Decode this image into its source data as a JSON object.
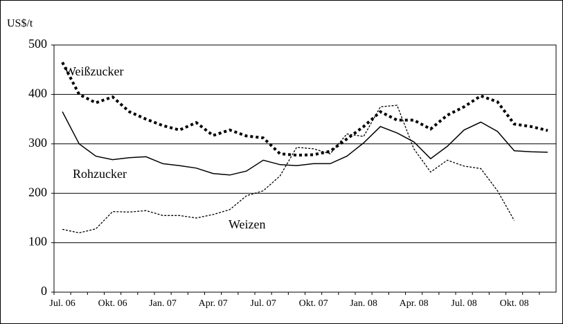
{
  "chart_data": {
    "type": "line",
    "y_label": "US$/t",
    "categories": [
      "Jul. 06",
      null,
      null,
      "Okt. 06",
      null,
      null,
      "Jan. 07",
      null,
      null,
      "Apr. 07",
      null,
      null,
      "Jul. 07",
      null,
      null,
      "Okt. 07",
      null,
      null,
      "Jan. 08",
      null,
      null,
      "Apr. 08",
      null,
      null,
      "Jul. 08",
      null,
      null,
      "Okt. 08",
      null,
      null
    ],
    "series": [
      {
        "name": "Weißzucker",
        "color": "#000000",
        "style": "thick-dotted",
        "values": [
          465,
          400,
          383,
          395,
          365,
          350,
          337,
          328,
          343,
          317,
          328,
          316,
          312,
          280,
          277,
          278,
          285,
          310,
          335,
          365,
          348,
          348,
          330,
          358,
          375,
          397,
          385,
          340,
          335,
          327
        ]
      },
      {
        "name": "Rohzucker",
        "color": "#000000",
        "style": "solid",
        "values": [
          365,
          300,
          275,
          268,
          272,
          274,
          260,
          256,
          251,
          240,
          237,
          245,
          267,
          258,
          256,
          260,
          260,
          275,
          302,
          335,
          322,
          304,
          270,
          295,
          328,
          344,
          325,
          286,
          284,
          283
        ]
      },
      {
        "name": "Weizen",
        "color": "#000000",
        "style": "thin-dotted",
        "values": [
          127,
          120,
          128,
          163,
          162,
          165,
          155,
          155,
          150,
          157,
          167,
          195,
          205,
          235,
          293,
          290,
          280,
          320,
          315,
          375,
          378,
          290,
          243,
          267,
          255,
          250,
          205,
          145,
          null,
          null
        ]
      }
    ],
    "ylim": [
      0,
      500
    ],
    "yticks": [
      0,
      100,
      200,
      300,
      400,
      500
    ],
    "grid": true
  }
}
